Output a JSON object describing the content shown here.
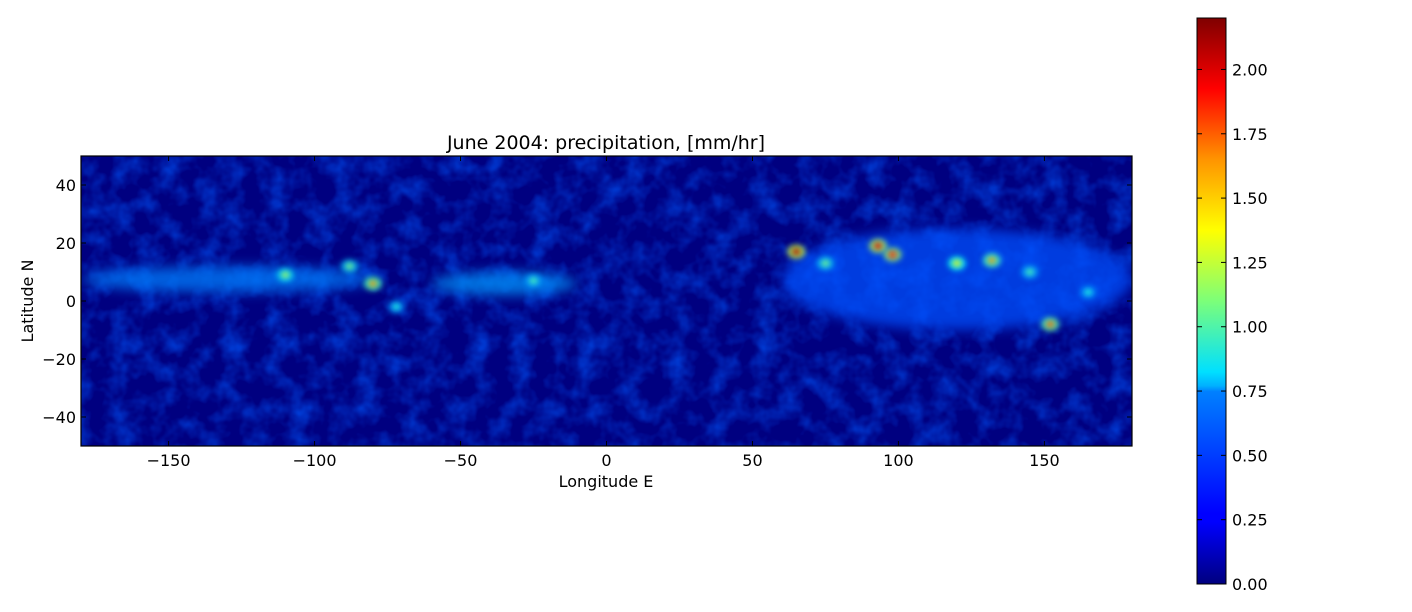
{
  "chart_data": {
    "type": "heatmap",
    "title": "June 2004: precipitation, [mm/hr]",
    "xlabel": "Longitude E",
    "ylabel": "Latitude N",
    "xlim": [
      -180,
      180
    ],
    "ylim": [
      -50,
      50
    ],
    "xticks": [
      -150,
      -100,
      -50,
      0,
      50,
      100,
      150
    ],
    "xtick_labels": [
      "−150",
      "−100",
      "−50",
      "0",
      "50",
      "100",
      "150"
    ],
    "yticks": [
      40,
      20,
      0,
      -20,
      -40
    ],
    "ytick_labels": [
      "40",
      "20",
      "0",
      "−20",
      "−40"
    ],
    "colormap": "jet",
    "colorbar": {
      "range": [
        0,
        2.2
      ],
      "ticks": [
        0.0,
        0.25,
        0.5,
        0.75,
        1.0,
        1.25,
        1.5,
        1.75,
        2.0
      ],
      "tick_labels": [
        "0.00",
        "0.25",
        "0.50",
        "0.75",
        "1.00",
        "1.25",
        "1.50",
        "1.75",
        "2.00"
      ]
    },
    "precip_bands": [
      {
        "lon": [
          -180,
          -80
        ],
        "lat": [
          3,
          12
        ],
        "value": 0.55
      },
      {
        "lon": [
          -60,
          -10
        ],
        "lat": [
          2,
          10
        ],
        "value": 0.6
      },
      {
        "lon": [
          60,
          180
        ],
        "lat": [
          -10,
          25
        ],
        "value": 0.45
      }
    ],
    "hotspots": [
      {
        "lon": -110,
        "lat": 9,
        "value": 1.2
      },
      {
        "lon": -80,
        "lat": 6,
        "value": 1.6
      },
      {
        "lon": -88,
        "lat": 12,
        "value": 1.1
      },
      {
        "lon": -25,
        "lat": 7,
        "value": 1.0
      },
      {
        "lon": 65,
        "lat": 17,
        "value": 2.1
      },
      {
        "lon": 75,
        "lat": 13,
        "value": 1.1
      },
      {
        "lon": 93,
        "lat": 19,
        "value": 2.0
      },
      {
        "lon": 98,
        "lat": 16,
        "value": 1.9
      },
      {
        "lon": 120,
        "lat": 13,
        "value": 1.4
      },
      {
        "lon": 132,
        "lat": 14,
        "value": 1.6
      },
      {
        "lon": 152,
        "lat": -8,
        "value": 1.7
      },
      {
        "lon": 145,
        "lat": 10,
        "value": 1.0
      },
      {
        "lon": 165,
        "lat": 3,
        "value": 0.9
      },
      {
        "lon": -72,
        "lat": -2,
        "value": 0.9
      }
    ],
    "colors": {
      "background_field": "#000080",
      "frame": "#000000"
    }
  }
}
